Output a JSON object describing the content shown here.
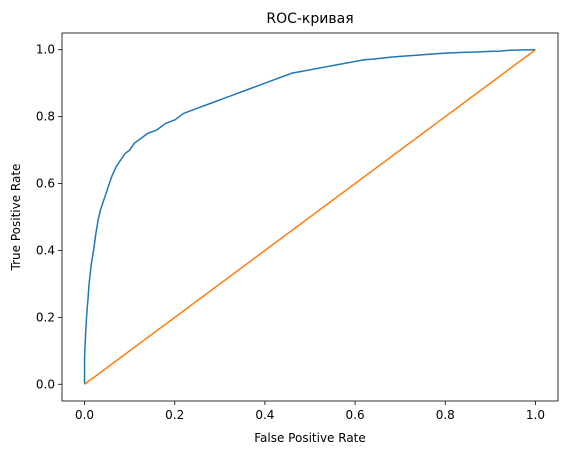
{
  "chart_data": {
    "type": "line",
    "title": "ROC-кривая",
    "xlabel": "False Positive Rate",
    "ylabel": "True Positive Rate",
    "xlim": [
      -0.05,
      1.05
    ],
    "ylim": [
      -0.05,
      1.05
    ],
    "xticks": [
      "0.0",
      "0.2",
      "0.4",
      "0.6",
      "0.8",
      "1.0"
    ],
    "yticks": [
      "0.0",
      "0.2",
      "0.4",
      "0.6",
      "0.8",
      "1.0"
    ],
    "grid": false,
    "legend": "none",
    "series": [
      {
        "color": "#1f77b4",
        "x": [
          0.0,
          0.0,
          0.002,
          0.004,
          0.006,
          0.008,
          0.01,
          0.015,
          0.02,
          0.025,
          0.03,
          0.035,
          0.04,
          0.045,
          0.05,
          0.055,
          0.06,
          0.07,
          0.08,
          0.09,
          0.1,
          0.11,
          0.12,
          0.13,
          0.14,
          0.16,
          0.18,
          0.2,
          0.22,
          0.24,
          0.26,
          0.28,
          0.3,
          0.32,
          0.34,
          0.36,
          0.38,
          0.4,
          0.42,
          0.44,
          0.46,
          0.48,
          0.5,
          0.52,
          0.54,
          0.56,
          0.58,
          0.6,
          0.62,
          0.64,
          0.66,
          0.68,
          0.7,
          0.72,
          0.74,
          0.76,
          0.78,
          0.8,
          0.82,
          0.84,
          0.86,
          0.88,
          0.9,
          0.92,
          0.94,
          0.96,
          1.0
        ],
        "y": [
          0.0,
          0.08,
          0.14,
          0.19,
          0.23,
          0.26,
          0.3,
          0.36,
          0.4,
          0.45,
          0.49,
          0.52,
          0.54,
          0.56,
          0.58,
          0.6,
          0.62,
          0.65,
          0.67,
          0.69,
          0.7,
          0.72,
          0.73,
          0.74,
          0.75,
          0.76,
          0.78,
          0.79,
          0.81,
          0.82,
          0.83,
          0.84,
          0.85,
          0.86,
          0.87,
          0.88,
          0.89,
          0.9,
          0.91,
          0.92,
          0.93,
          0.935,
          0.94,
          0.945,
          0.95,
          0.955,
          0.96,
          0.965,
          0.97,
          0.972,
          0.975,
          0.978,
          0.98,
          0.982,
          0.984,
          0.986,
          0.988,
          0.99,
          0.991,
          0.992,
          0.993,
          0.994,
          0.995,
          0.996,
          0.998,
          0.999,
          1.0
        ]
      },
      {
        "color": "#ff7f0e",
        "x": [
          0.0,
          1.0
        ],
        "y": [
          0.0,
          1.0
        ]
      }
    ]
  }
}
